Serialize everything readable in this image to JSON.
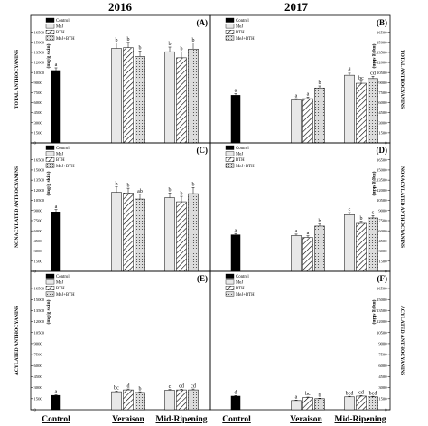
{
  "years": [
    "2016",
    "2017"
  ],
  "x_categories": [
    "Control",
    "Veraison",
    "Mid-Ripening"
  ],
  "legend": [
    "Control",
    "MeJ",
    "BTH",
    "MeJ+BTH"
  ],
  "treatment_colors": {
    "Control": "#000000",
    "MeJ": "#e8e8e8",
    "BTH": "#ffffff",
    "MeJ+BTH": "#dcdcdc"
  },
  "unit_label": "(mg/g skin)",
  "chart_data": [
    {
      "type": "bar",
      "panel": "(A)",
      "year": "2016",
      "ylabel": "TOTAL ANTHOCYANINS",
      "ylim": [
        0,
        17000
      ],
      "yticks": [
        0,
        1500,
        3000,
        4500,
        6000,
        7500,
        9000,
        10500,
        12000,
        13500,
        15000,
        16500
      ],
      "control": {
        "value": 10800,
        "error": 400,
        "sig": "a"
      },
      "series": [
        {
          "name": "MeJ",
          "values": [
            14100,
            13600
          ],
          "errors": [
            800,
            700
          ],
          "sig": [
            "b",
            "b"
          ]
        },
        {
          "name": "BTH",
          "values": [
            14200,
            12700
          ],
          "errors": [
            800,
            900
          ],
          "sig": [
            "b",
            "b"
          ]
        },
        {
          "name": "MeJ+BTH",
          "values": [
            12900,
            14000
          ],
          "errors": [
            800,
            900
          ],
          "sig": [
            "b",
            "b"
          ]
        }
      ]
    },
    {
      "type": "bar",
      "panel": "(B)",
      "year": "2017",
      "ylabel": "TOTAL ANTHOCYANINS",
      "ylim": [
        0,
        17000
      ],
      "yticks": [
        0,
        1500,
        3000,
        4500,
        6000,
        7500,
        9000,
        10500,
        12000,
        13500,
        15000,
        16500
      ],
      "control": {
        "value": 7100,
        "error": 250,
        "sig": "a"
      },
      "series": [
        {
          "name": "MeJ",
          "values": [
            6400,
            10100
          ],
          "errors": [
            200,
            300
          ],
          "sig": [
            "a",
            "d"
          ]
        },
        {
          "name": "BTH",
          "values": [
            6600,
            8900
          ],
          "errors": [
            250,
            300
          ],
          "sig": [
            "a",
            "bc"
          ]
        },
        {
          "name": "MeJ+BTH",
          "values": [
            8200,
            9600
          ],
          "errors": [
            300,
            350
          ],
          "sig": [
            "b",
            "cd"
          ]
        }
      ]
    },
    {
      "type": "bar",
      "panel": "(C)",
      "year": "2016",
      "ylabel": "NONACYLATED ANTHOCYANINS",
      "ylim": [
        0,
        17000
      ],
      "yticks": [
        0,
        1500,
        3000,
        4500,
        6000,
        7500,
        9000,
        10500,
        12000,
        13500,
        15000,
        16500
      ],
      "control": {
        "value": 8800,
        "error": 350,
        "sig": "a"
      },
      "series": [
        {
          "name": "MeJ",
          "values": [
            11700,
            10900
          ],
          "errors": [
            800,
            700
          ],
          "sig": [
            "b",
            "b"
          ]
        },
        {
          "name": "BTH",
          "values": [
            11600,
            10300
          ],
          "errors": [
            700,
            800
          ],
          "sig": [
            "b",
            "b"
          ]
        },
        {
          "name": "MeJ+BTH",
          "values": [
            10700,
            11500
          ],
          "errors": [
            700,
            900
          ],
          "sig": [
            "ab",
            "b"
          ]
        }
      ]
    },
    {
      "type": "bar",
      "panel": "(D)",
      "year": "2017",
      "ylabel": "NONACYLATED ANTHOCYANINS",
      "ylim": [
        0,
        17000
      ],
      "yticks": [
        0,
        1500,
        3000,
        4500,
        6000,
        7500,
        9000,
        10500,
        12000,
        13500,
        15000,
        16500
      ],
      "control": {
        "value": 5400,
        "error": 200,
        "sig": "a"
      },
      "series": [
        {
          "name": "MeJ",
          "values": [
            5300,
            8400
          ],
          "errors": [
            200,
            300
          ],
          "sig": [
            "a",
            "c"
          ]
        },
        {
          "name": "BTH",
          "values": [
            5000,
            7100
          ],
          "errors": [
            250,
            300
          ],
          "sig": [
            "a",
            "b"
          ]
        },
        {
          "name": "MeJ+BTH",
          "values": [
            6700,
            7900
          ],
          "errors": [
            300,
            350
          ],
          "sig": [
            "b",
            "c"
          ]
        }
      ]
    },
    {
      "type": "bar",
      "panel": "(E)",
      "year": "2016",
      "ylabel": "ACYLATED ANTHOCYANINS",
      "ylim": [
        0,
        17000
      ],
      "yticks": [
        0,
        1500,
        3000,
        4500,
        6000,
        7500,
        9000,
        10500,
        12000,
        13500,
        15000,
        16500
      ],
      "control": {
        "value": 1950,
        "error": 80,
        "sig": "a"
      },
      "series": [
        {
          "name": "MeJ",
          "values": [
            2450,
            2650
          ],
          "errors": [
            100,
            100
          ],
          "sig": [
            "bc",
            "c"
          ]
        },
        {
          "name": "BTH",
          "values": [
            2700,
            2700
          ],
          "errors": [
            120,
            100
          ],
          "sig": [
            "d",
            "cd"
          ]
        },
        {
          "name": "MeJ+BTH",
          "values": [
            2350,
            2700
          ],
          "errors": [
            100,
            120
          ],
          "sig": [
            "b",
            "cd"
          ]
        }
      ]
    },
    {
      "type": "bar",
      "panel": "(F)",
      "year": "2017",
      "ylabel": "ACYLATED ANTHOCYANINS",
      "ylim": [
        0,
        17000
      ],
      "yticks": [
        0,
        1500,
        3000,
        4500,
        6000,
        7500,
        9000,
        10500,
        12000,
        13500,
        15000,
        16500
      ],
      "control": {
        "value": 1850,
        "error": 80,
        "sig": "d"
      },
      "series": [
        {
          "name": "MeJ",
          "values": [
            1250,
            1750
          ],
          "errors": [
            60,
            80
          ],
          "sig": [
            "a",
            "bcd"
          ]
        },
        {
          "name": "BTH",
          "values": [
            1650,
            1850
          ],
          "errors": [
            70,
            80
          ],
          "sig": [
            "bc",
            "cd"
          ]
        },
        {
          "name": "MeJ+BTH",
          "values": [
            1500,
            1750
          ],
          "errors": [
            70,
            80
          ],
          "sig": [
            "b",
            "bcd"
          ]
        }
      ]
    }
  ]
}
